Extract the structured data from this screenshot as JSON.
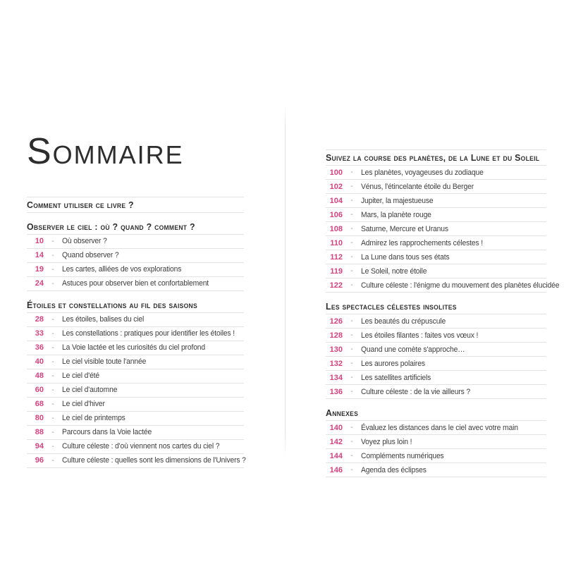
{
  "page": {
    "title": "Sommaire"
  },
  "separator": "-",
  "colors": {
    "accent": "#d6417f",
    "rule": "#e3e3e3",
    "text": "#3d3d3d",
    "heading": "#2e2e2e"
  },
  "left_sections": [
    {
      "heading": "Comment utiliser ce livre ?",
      "items": []
    },
    {
      "heading": "Observer le ciel : où ? quand ? comment ?",
      "items": [
        {
          "page": "10",
          "label": "Où observer ?"
        },
        {
          "page": "14",
          "label": "Quand observer ?"
        },
        {
          "page": "19",
          "label": "Les cartes, alliées de vos explorations"
        },
        {
          "page": "24",
          "label": "Astuces pour observer bien et confortablement"
        }
      ]
    },
    {
      "heading": "Étoiles et constellations au fil des saisons",
      "items": [
        {
          "page": "28",
          "label": "Les étoiles, balises du ciel"
        },
        {
          "page": "33",
          "label": "Les constellations : pratiques pour identifier les étoiles !"
        },
        {
          "page": "36",
          "label": "La Voie lactée et les curiosités du ciel profond"
        },
        {
          "page": "40",
          "label": "Le ciel visible toute l'année"
        },
        {
          "page": "48",
          "label": "Le ciel d'été"
        },
        {
          "page": "60",
          "label": "Le ciel d'automne"
        },
        {
          "page": "68",
          "label": "Le ciel d'hiver"
        },
        {
          "page": "80",
          "label": "Le ciel de printemps"
        },
        {
          "page": "88",
          "label": "Parcours dans la Voie lactée"
        },
        {
          "page": "94",
          "label": "Culture céleste : d'où viennent nos cartes du ciel ?"
        },
        {
          "page": "96",
          "label": "Culture céleste : quelles sont les dimensions de l'Univers ?"
        }
      ]
    }
  ],
  "right_sections": [
    {
      "heading": "Suivez la course des planètes, de la Lune et du Soleil",
      "items": [
        {
          "page": "100",
          "label": "Les planètes, voyageuses du zodiaque"
        },
        {
          "page": "102",
          "label": "Vénus, l'étincelante étoile du Berger"
        },
        {
          "page": "104",
          "label": "Jupiter, la majestueuse"
        },
        {
          "page": "106",
          "label": "Mars, la planète rouge"
        },
        {
          "page": "108",
          "label": "Saturne, Mercure et Uranus"
        },
        {
          "page": "110",
          "label": "Admirez les rapprochements célestes !"
        },
        {
          "page": "112",
          "label": "La Lune dans tous ses états"
        },
        {
          "page": "119",
          "label": "Le Soleil, notre étoile"
        },
        {
          "page": "122",
          "label": "Culture céleste : l'énigme du mouvement des planètes élucidée"
        }
      ]
    },
    {
      "heading": "Les spectacles célestes insolites",
      "items": [
        {
          "page": "126",
          "label": "Les beautés du crépuscule"
        },
        {
          "page": "128",
          "label": "Les étoiles filantes : faites vos vœux !"
        },
        {
          "page": "130",
          "label": "Quand une comète s'approche…"
        },
        {
          "page": "132",
          "label": "Les aurores polaires"
        },
        {
          "page": "134",
          "label": "Les satellites artificiels"
        },
        {
          "page": "136",
          "label": "Culture céleste : de la vie ailleurs ?"
        }
      ]
    },
    {
      "heading": "Annexes",
      "items": [
        {
          "page": "140",
          "label": "Évaluez les distances dans le ciel avec votre main"
        },
        {
          "page": "142",
          "label": "Voyez plus loin !"
        },
        {
          "page": "144",
          "label": "Compléments numériques"
        },
        {
          "page": "146",
          "label": "Agenda des éclipses"
        }
      ]
    }
  ]
}
